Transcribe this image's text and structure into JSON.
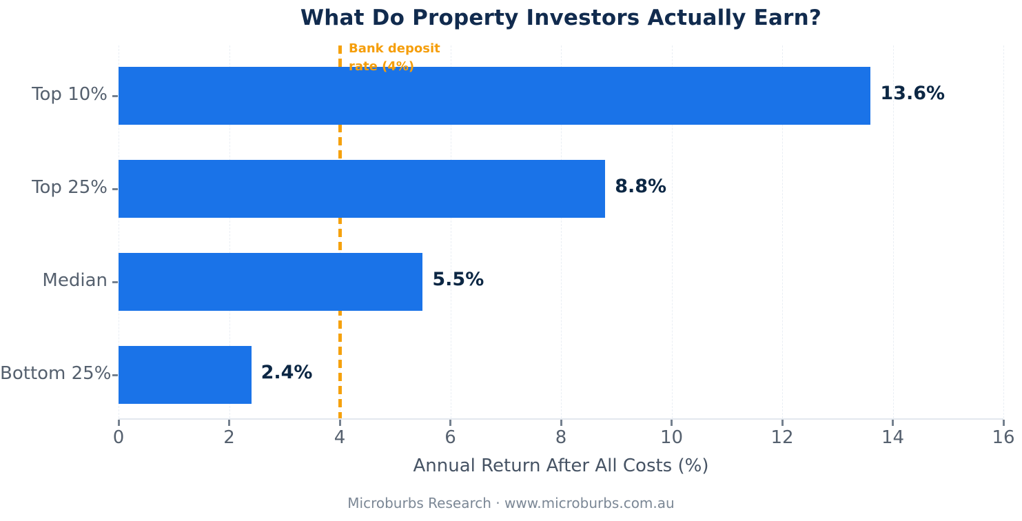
{
  "title": "What Do Property Investors Actually Earn?",
  "footer": "Microburbs Research · www.microburbs.com.au",
  "colors": {
    "bar": "#1a73e8",
    "title_text": "#112b4e",
    "value_text": "#0c2744",
    "axis_text": "#55606e",
    "reference": "#f5a10d",
    "gridline": "#e9eef4"
  },
  "chart_data": {
    "type": "bar",
    "orientation": "horizontal",
    "title": "What Do Property Investors Actually Earn?",
    "categories": [
      "Top 10%",
      "Top 25%",
      "Median",
      "Bottom 25%"
    ],
    "values": [
      13.6,
      8.8,
      5.5,
      2.4
    ],
    "value_labels": [
      "13.6%",
      "8.8%",
      "5.5%",
      "2.4%"
    ],
    "xlabel": "Annual Return After All Costs (%)",
    "ylabel": "",
    "xlim": [
      0,
      16
    ],
    "xticks": [
      0,
      2,
      4,
      6,
      8,
      10,
      12,
      14,
      16
    ],
    "grid": true,
    "grid_style": "dashed-vertical",
    "legend": "none",
    "reference_line": {
      "x": 4,
      "label": "Bank deposit\nrate (4%)",
      "style": "dashed",
      "color": "#f5a10d"
    }
  }
}
